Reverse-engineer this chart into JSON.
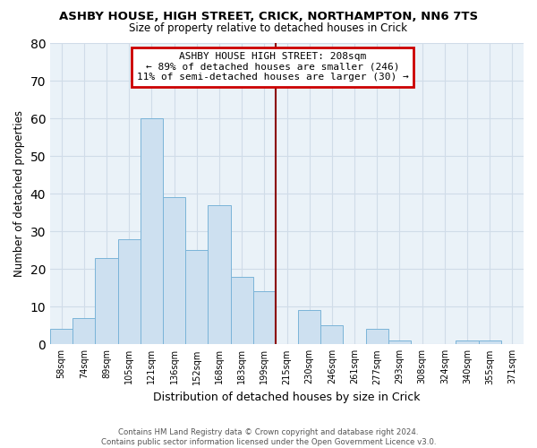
{
  "title": "ASHBY HOUSE, HIGH STREET, CRICK, NORTHAMPTON, NN6 7TS",
  "subtitle": "Size of property relative to detached houses in Crick",
  "xlabel": "Distribution of detached houses by size in Crick",
  "ylabel": "Number of detached properties",
  "bar_color": "#cde0f0",
  "bar_edge_color": "#7ab4d8",
  "categories": [
    "58sqm",
    "74sqm",
    "89sqm",
    "105sqm",
    "121sqm",
    "136sqm",
    "152sqm",
    "168sqm",
    "183sqm",
    "199sqm",
    "215sqm",
    "230sqm",
    "246sqm",
    "261sqm",
    "277sqm",
    "293sqm",
    "308sqm",
    "324sqm",
    "340sqm",
    "355sqm",
    "371sqm"
  ],
  "values": [
    4,
    7,
    23,
    28,
    60,
    39,
    25,
    37,
    18,
    14,
    0,
    9,
    5,
    0,
    4,
    1,
    0,
    0,
    1,
    1,
    0
  ],
  "ylim": [
    0,
    80
  ],
  "yticks": [
    0,
    10,
    20,
    30,
    40,
    50,
    60,
    70,
    80
  ],
  "vline_color": "#8b0000",
  "annotation_title": "ASHBY HOUSE HIGH STREET: 208sqm",
  "annotation_line1": "← 89% of detached houses are smaller (246)",
  "annotation_line2": "11% of semi-detached houses are larger (30) →",
  "annotation_box_color": "#ffffff",
  "annotation_box_edge": "#cc0000",
  "footer_line1": "Contains HM Land Registry data © Crown copyright and database right 2024.",
  "footer_line2": "Contains public sector information licensed under the Open Government Licence v3.0.",
  "background_color": "#ffffff",
  "grid_color": "#d0dce8"
}
